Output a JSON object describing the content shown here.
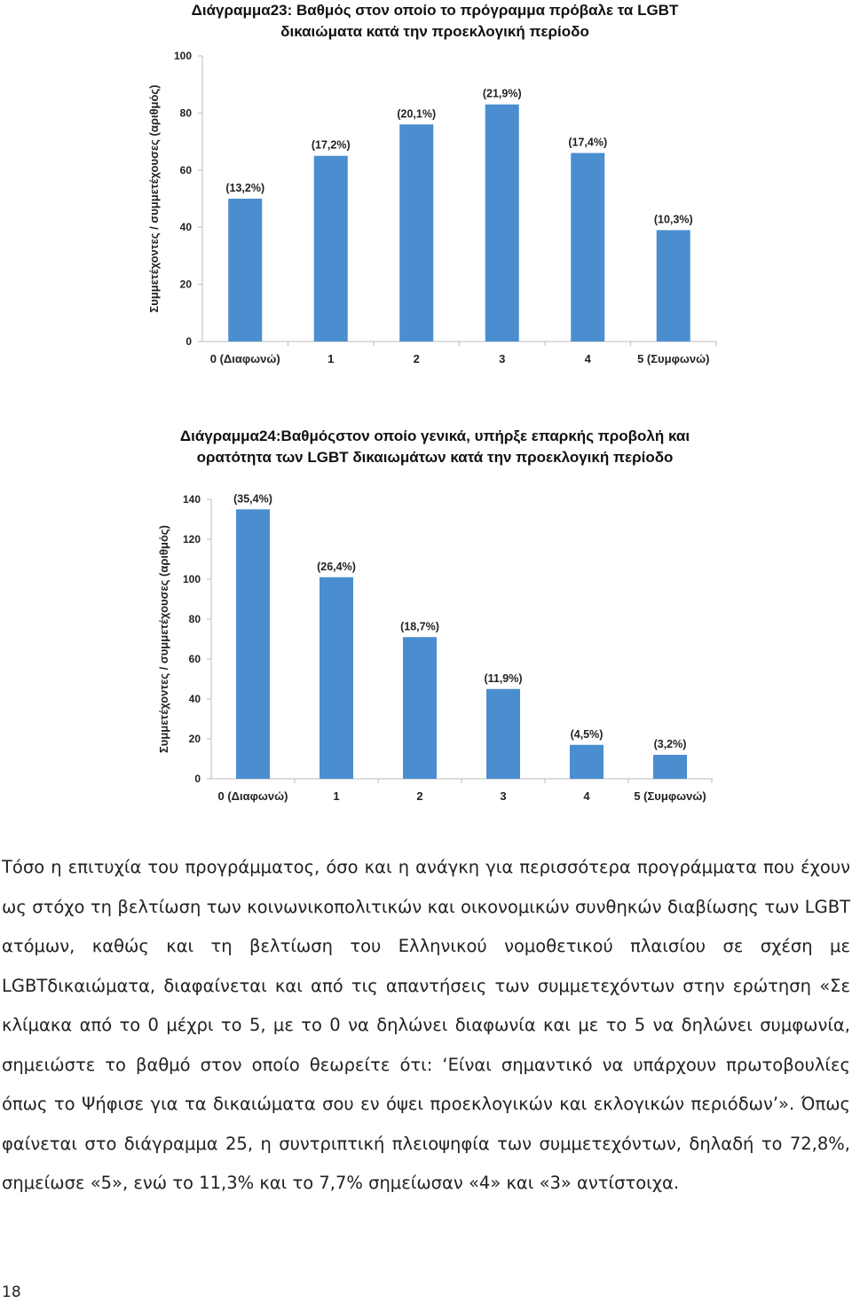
{
  "chart_data": [
    {
      "type": "bar",
      "title_lines": [
        "Διάγραμμα23: Βαθμός στον οποίο το πρόγραμμα πρόβαλε τα LGBT",
        "δικαιώματα κατά την προεκλογική περίοδο"
      ],
      "xlabel": "",
      "ylabel": "Συμμετέχοντες / συμμετέχουσες (αριθμός)",
      "categories": [
        "0 (Διαφωνώ)",
        "1",
        "2",
        "3",
        "4",
        "5 (Συμφωνώ)"
      ],
      "values": [
        50,
        65,
        76,
        83,
        66,
        39
      ],
      "data_labels": [
        "(13,2%)",
        "(17,2%)",
        "(20,1%)",
        "(21,9%)",
        "(17,4%)",
        "(10,3%)"
      ],
      "ylim": [
        0,
        100
      ],
      "yticks": [
        "0",
        "20",
        "40",
        "60",
        "80",
        "100"
      ],
      "grid": false,
      "legend": "none",
      "bar_color": "#4a8ed0"
    },
    {
      "type": "bar",
      "title_lines": [
        "Διάγραμμα24:Βαθμόςστον οποίο γενικά, υπήρξε επαρκής προβολή και",
        "ορατότητα των LGBT δικαιωμάτων κατά την προεκλογική περίοδο"
      ],
      "xlabel": "",
      "ylabel": "Συμμετέχοντες / συμμετέχουσες (αριθμός)",
      "categories": [
        "0 (Διαφωνώ)",
        "1",
        "2",
        "3",
        "4",
        "5 (Συμφωνώ)"
      ],
      "values": [
        135,
        101,
        71,
        45,
        17,
        12
      ],
      "data_labels": [
        "(35,4%)",
        "(26,4%)",
        "(18,7%)",
        "(11,9%)",
        "(4,5%)",
        "(3,2%)"
      ],
      "ylim": [
        0,
        140
      ],
      "yticks": [
        "0",
        "20",
        "40",
        "60",
        "80",
        "100",
        "120",
        "140"
      ],
      "grid": false,
      "legend": "none",
      "bar_color": "#4a8ed0"
    }
  ],
  "paragraph": "Τόσο η επιτυχία του προγράμματος, όσο και η ανάγκη για περισσότερα προγράμματα που έχουν ως στόχο τη βελτίωση των κοινωνικοπολιτικών και οικονομικών συνθηκών διαβίωσης των LGBT ατόμων, καθώς και τη βελτίωση του Ελληνικού νομοθετικού πλαισίου σε σχέση με LGBTδικαιώματα, διαφαίνεται και από τις απαντήσεις των συμμετεχόντων στην ερώτηση «Σε κλίμακα από το 0 μέχρι το 5, με το 0 να δηλώνει διαφωνία και με το 5 να δηλώνει συμφωνία, σημειώστε το βαθμό στον οποίο θεωρείτε ότι: ‘Είναι σημαντικό να υπάρχουν πρωτοβουλίες όπως το Ψήφισε για τα δικαιώματα σου εν όψει προεκλογικών και εκλογικών περιόδων’». Όπως φαίνεται στο διάγραμμα 25, η συντριπτική πλειοψηφία των συμμετεχόντων, δηλαδή το 72,8%, σημείωσε «5», ενώ το 11,3% και το 7,7% σημείωσαν «4» και «3» αντίστοιχα.",
  "page_number": "18"
}
